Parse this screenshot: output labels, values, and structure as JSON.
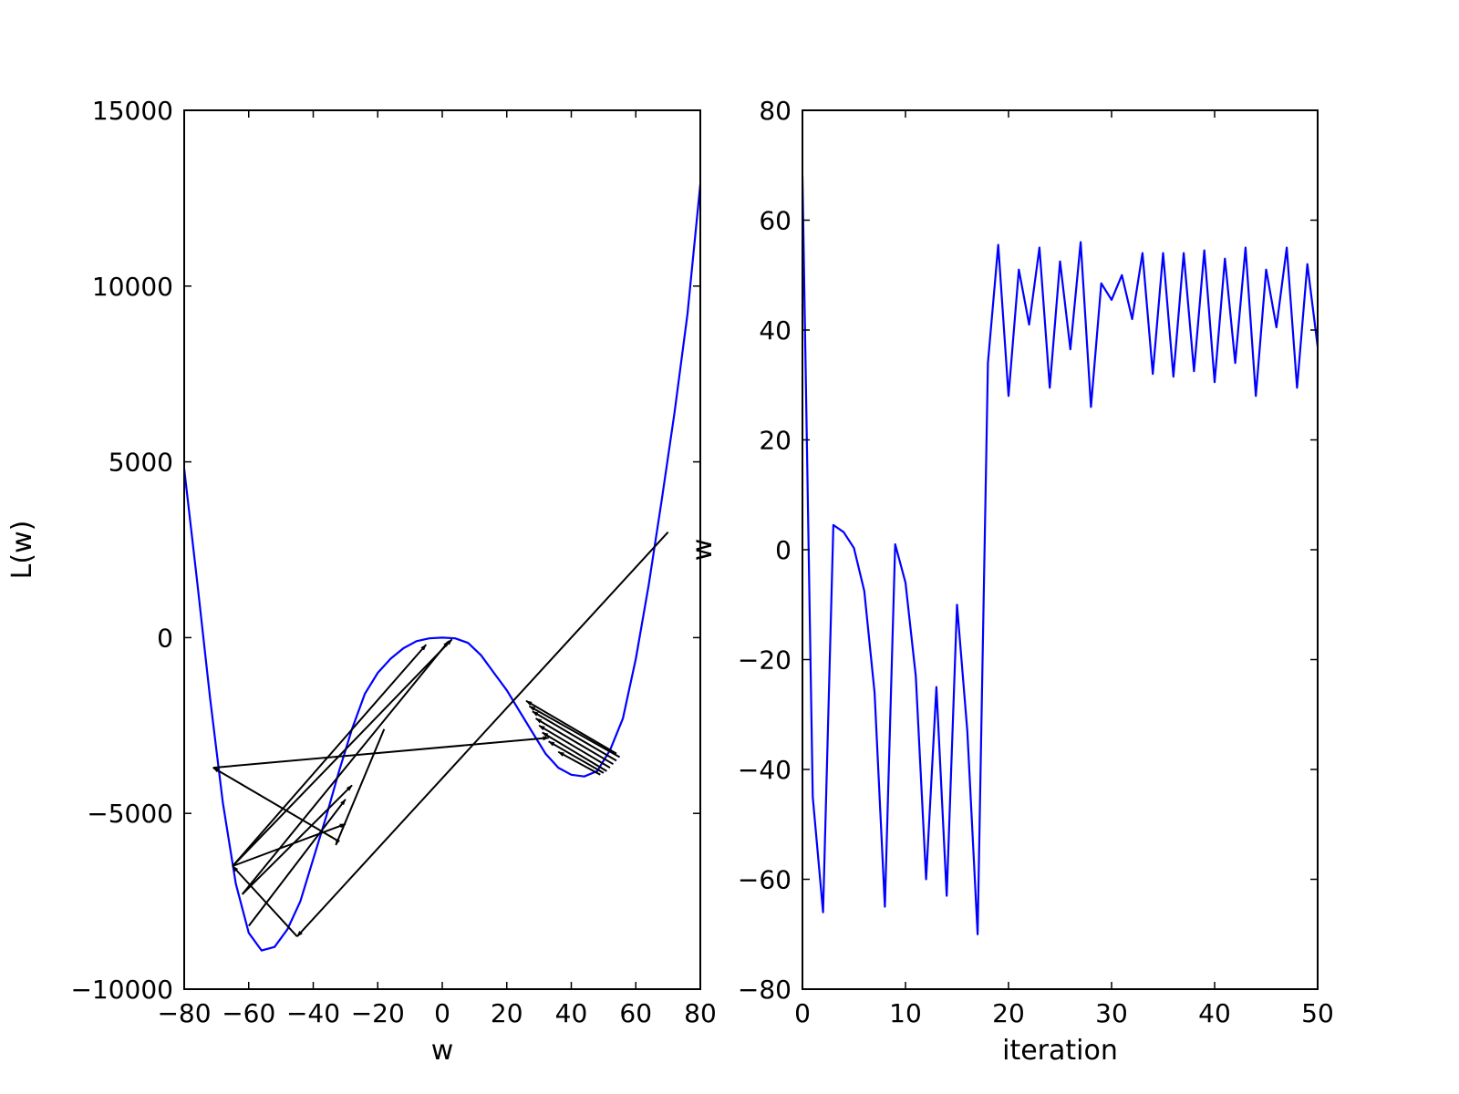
{
  "chart_data": [
    {
      "type": "line",
      "xlabel": "w",
      "ylabel": "L(w)",
      "xlim": [
        -80,
        80
      ],
      "ylim": [
        -10000,
        15000
      ],
      "xticks": [
        -80,
        -60,
        -40,
        -20,
        0,
        20,
        40,
        60,
        80
      ],
      "xtick_labels": [
        "−80",
        "−60",
        "−40",
        "−20",
        "0",
        "20",
        "40",
        "60",
        "80"
      ],
      "yticks": [
        -10000,
        -5000,
        0,
        5000,
        10000,
        15000
      ],
      "ytick_labels": [
        "−10000",
        "−5000",
        "0",
        "5000",
        "10000",
        "15000"
      ],
      "grid": false,
      "series": [
        {
          "kind": "curve",
          "color": "#0000ff",
          "x": [
            -80,
            -76,
            -72,
            -68,
            -64,
            -60,
            -56,
            -52,
            -48,
            -44,
            -40,
            -36,
            -32,
            -28,
            -24,
            -20,
            -16,
            -12,
            -8,
            -4,
            0,
            4,
            8,
            12,
            16,
            20,
            24,
            28,
            32,
            36,
            40,
            44,
            48,
            52,
            56,
            60,
            64,
            68,
            72,
            76,
            80
          ],
          "y": [
            4800,
            1600,
            -1700,
            -4700,
            -7000,
            -8400,
            -8900,
            -8800,
            -8300,
            -7500,
            -6300,
            -5100,
            -3800,
            -2600,
            -1600,
            -1000,
            -600,
            -300,
            -100,
            -20,
            0,
            -20,
            -150,
            -500,
            -1000,
            -1500,
            -2100,
            -2700,
            -3300,
            -3700,
            -3900,
            -3950,
            -3800,
            -3200,
            -2300,
            -600,
            1500,
            3900,
            6400,
            9200,
            12900
          ]
        },
        {
          "kind": "arrows",
          "color": "#000000",
          "segments": [
            {
              "from": [
                70,
                3000
              ],
              "to": [
                -45,
                -8500
              ]
            },
            {
              "from": [
                -45,
                -8500
              ],
              "to": [
                -65,
                -6500
              ]
            },
            {
              "from": [
                -65,
                -6500
              ],
              "to": [
                3,
                -50
              ]
            },
            {
              "from": [
                -65,
                -6500
              ],
              "to": [
                -5,
                -200
              ]
            },
            {
              "from": [
                -62,
                -7300
              ],
              "to": [
                2,
                -100
              ]
            },
            {
              "from": [
                -62,
                -7300
              ],
              "to": [
                -28,
                -4200
              ]
            },
            {
              "from": [
                -60,
                -8200
              ],
              "to": [
                -30,
                -4600
              ]
            },
            {
              "from": [
                -65,
                -6500
              ],
              "to": [
                -30,
                -5300
              ]
            },
            {
              "from": [
                -32,
                -5800
              ],
              "to": [
                -71,
                -3700
              ]
            },
            {
              "from": [
                -71,
                -3700
              ],
              "to": [
                33,
                -2850
              ]
            },
            {
              "from": [
                -18,
                -2600
              ],
              "to": [
                -33,
                -5900
              ]
            },
            {
              "from": [
                54,
                -3300
              ],
              "to": [
                26,
                -1800
              ]
            },
            {
              "from": [
                55,
                -3400
              ],
              "to": [
                27,
                -1950
              ]
            },
            {
              "from": [
                54,
                -3500
              ],
              "to": [
                28,
                -2100
              ]
            },
            {
              "from": [
                53,
                -3600
              ],
              "to": [
                29,
                -2300
              ]
            },
            {
              "from": [
                52,
                -3700
              ],
              "to": [
                30,
                -2500
              ]
            },
            {
              "from": [
                51,
                -3800
              ],
              "to": [
                31,
                -2700
              ]
            },
            {
              "from": [
                50,
                -3850
              ],
              "to": [
                33,
                -2950
              ]
            },
            {
              "from": [
                49,
                -3900
              ],
              "to": [
                36,
                -3250
              ]
            }
          ]
        }
      ]
    },
    {
      "type": "line",
      "xlabel": "iteration",
      "ylabel": "w",
      "xlim": [
        0,
        50
      ],
      "ylim": [
        -80,
        80
      ],
      "xticks": [
        0,
        10,
        20,
        30,
        40,
        50
      ],
      "xtick_labels": [
        "0",
        "10",
        "20",
        "30",
        "40",
        "50"
      ],
      "yticks": [
        -80,
        -60,
        -40,
        -20,
        0,
        20,
        40,
        60,
        80
      ],
      "ytick_labels": [
        "−80",
        "−60",
        "−40",
        "−20",
        "0",
        "20",
        "40",
        "60",
        "80"
      ],
      "grid": false,
      "series": [
        {
          "color": "#0000ff",
          "x": [
            0,
            1,
            2,
            3,
            4,
            5,
            6,
            7,
            8,
            9,
            10,
            11,
            12,
            13,
            14,
            15,
            16,
            17,
            18,
            19,
            20,
            21,
            22,
            23,
            24,
            25,
            26,
            27,
            28,
            29,
            30,
            31,
            32,
            33,
            34,
            35,
            36,
            37,
            38,
            39,
            40,
            41,
            42,
            43,
            44,
            45,
            46,
            47,
            48,
            49,
            50
          ],
          "y": [
            68,
            -45,
            -66,
            4.5,
            3.2,
            0.3,
            -7.5,
            -26,
            -65,
            1,
            -6,
            -23,
            -60,
            -25,
            -63,
            -10,
            -33,
            -70,
            34,
            55.5,
            28,
            51,
            41,
            55,
            29.5,
            52.5,
            36.5,
            56,
            26,
            48.5,
            45.5,
            50,
            42,
            54,
            32,
            54,
            31.5,
            54,
            32.5,
            54.5,
            30.5,
            53,
            34,
            55,
            28,
            51,
            40.5,
            55,
            29.5,
            52,
            37
          ]
        }
      ]
    }
  ]
}
